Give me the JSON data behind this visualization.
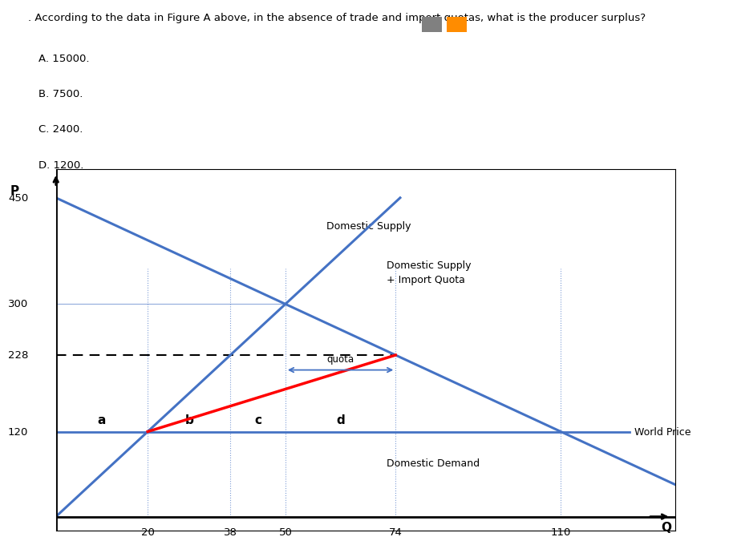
{
  "question_text": ". According to the data in Figure A above, in the absence of trade and import quotas, what is the producer surplus?",
  "options": [
    "A. 15000.",
    "B. 7500.",
    "C. 2400.",
    "D. 1200."
  ],
  "chart": {
    "p_axis_label": "P",
    "q_axis_label": "Q",
    "y_ticks": [
      120,
      228,
      300,
      450
    ],
    "x_ticks": [
      20,
      38,
      50,
      74,
      110
    ],
    "world_price": 120,
    "equilibrium_price": 300,
    "quota_price": 228,
    "ds_color": "#4472C4",
    "dd_color": "#4472C4",
    "world_price_color": "#4472C4",
    "ds_import_quota_color": "#FF0000",
    "dashed_line_color": "#000000",
    "label_a": "a",
    "label_b": "b",
    "label_c": "c",
    "label_d": "d",
    "label_quota": "quota",
    "label_domestic_supply": "Domestic Supply",
    "label_domestic_supply_import": "Domestic Supply\n+ Import Quota",
    "label_domestic_demand": "Domestic Demand",
    "label_world_price": "World Price",
    "icon_gray": "#808080",
    "icon_orange": "#FF8C00",
    "bg_color": "#FFFFFF",
    "xmin": 0,
    "xmax": 135,
    "ymin": -20,
    "ymax": 490,
    "ds_slope": 6,
    "dd_intercept": 450,
    "dd_slope": -3
  }
}
